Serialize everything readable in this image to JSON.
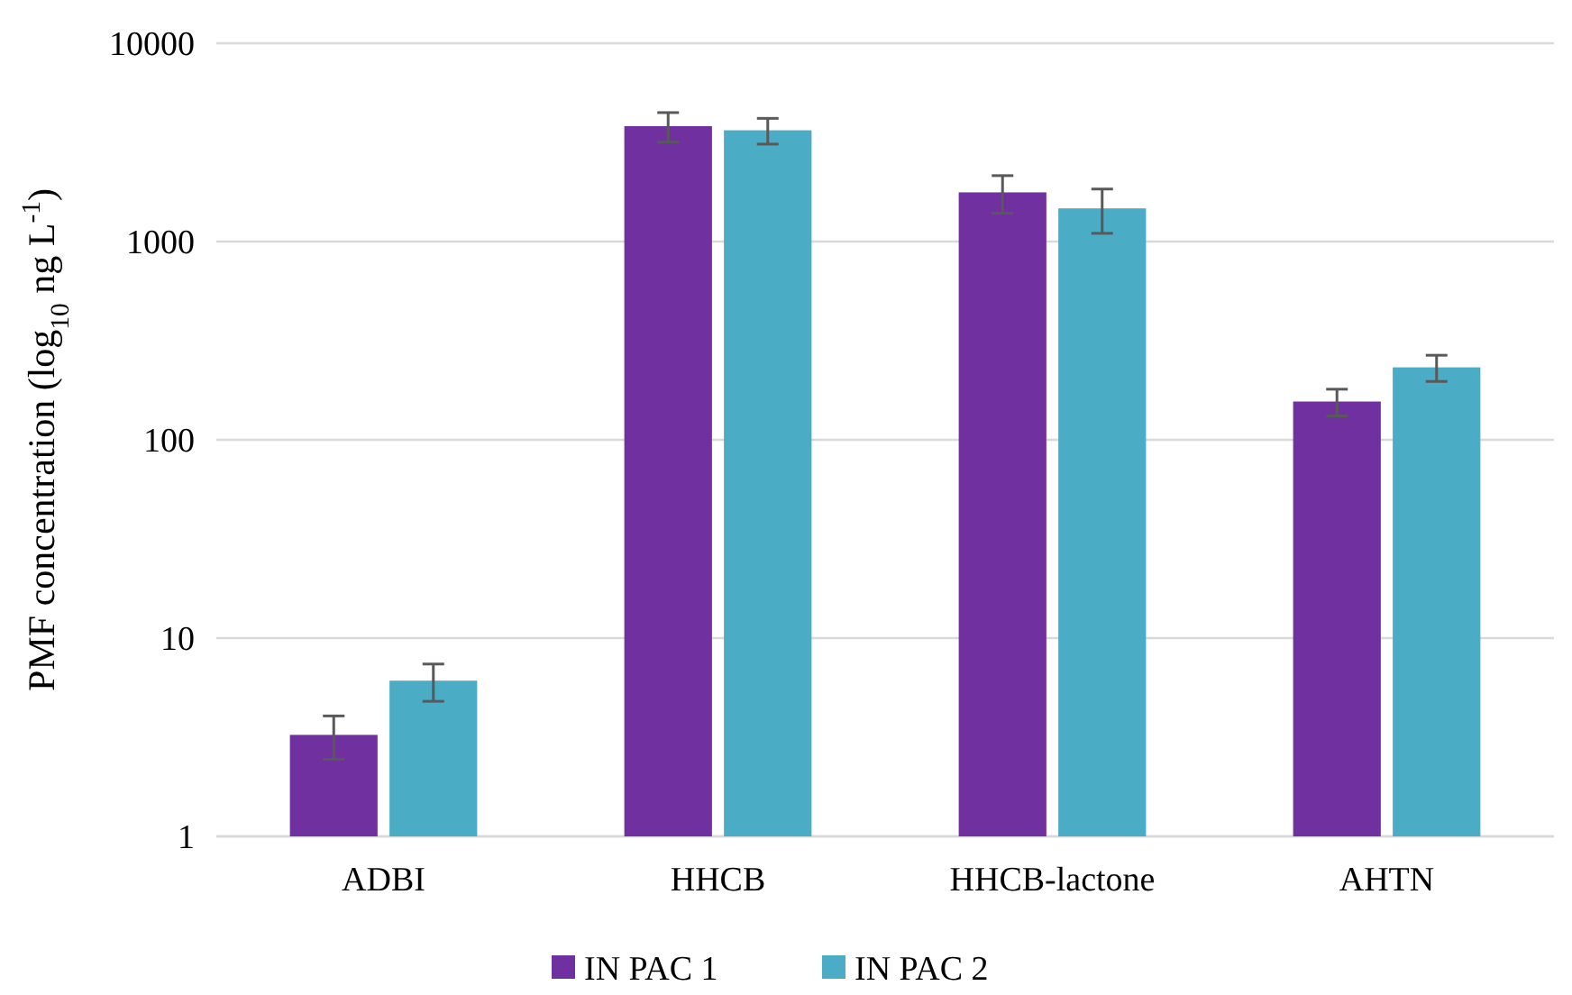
{
  "chart_data": {
    "type": "bar",
    "ylabel": "PMF concentration (log$_{10}$ ng L$^{-1}$)",
    "categories": [
      "ADBI",
      "HHCB",
      "HHCB-lactone",
      "AHTN"
    ],
    "series": [
      {
        "name": "IN PAC 1",
        "color": "#7030a0",
        "values": [
          3.25,
          3820,
          1770,
          156
        ],
        "errors": [
          0.8,
          650,
          380,
          24
        ]
      },
      {
        "name": "IN PAC 2",
        "color": "#4bacc6",
        "values": [
          6.1,
          3640,
          1470,
          232
        ],
        "errors": [
          1.3,
          540,
          370,
          35
        ]
      }
    ],
    "log": true,
    "ylim": [
      1,
      10000
    ],
    "yticks": [
      1,
      10,
      100,
      1000,
      10000
    ],
    "grid": "y",
    "legend": "bottom"
  }
}
